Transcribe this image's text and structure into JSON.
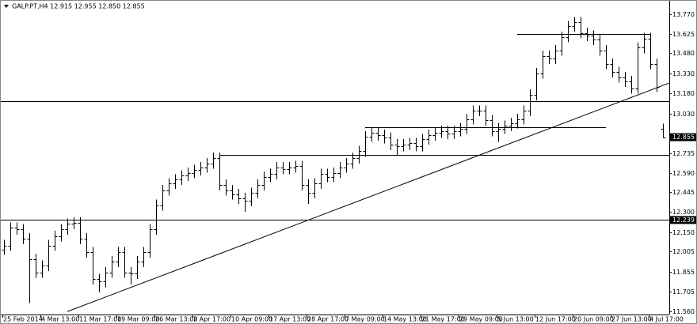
{
  "chart_data": {
    "type": "ohlc",
    "title": "GALP.PT,H4 12.915 12.955 12.850 12.855",
    "categories": [
      "25 Feb 2014",
      null,
      null,
      null,
      null,
      null,
      "4 Mar 13:00",
      null,
      null,
      null,
      null,
      null,
      "11 Mar 17:00",
      null,
      null,
      null,
      null,
      null,
      "19 Mar 09:00",
      null,
      null,
      null,
      null,
      null,
      "26 Mar 13:00",
      null,
      null,
      null,
      null,
      null,
      "2 Apr 17:00",
      null,
      null,
      null,
      null,
      null,
      "10 Apr 09:00",
      null,
      null,
      null,
      null,
      null,
      "17 Apr 13:00",
      null,
      null,
      null,
      null,
      null,
      "28 Apr 17:00",
      null,
      null,
      null,
      null,
      null,
      "7 May 09:00",
      null,
      null,
      null,
      null,
      null,
      "14 May 13:00",
      null,
      null,
      null,
      null,
      null,
      "21 May 17:00",
      null,
      null,
      null,
      null,
      null,
      "29 May 09:00",
      null,
      null,
      null,
      null,
      null,
      "5 Jun 13:00",
      null,
      null,
      null,
      null,
      null,
      "12 Jun 17:00",
      null,
      null,
      null,
      null,
      null,
      "20 Jun 09:00",
      null,
      null,
      null,
      null,
      null,
      "27 Jun 13:00",
      null,
      null,
      null,
      null,
      null,
      "4 Jul 17:00",
      null,
      null
    ],
    "open": [
      12.02,
      12.05,
      12.18,
      12.17,
      12.1,
      11.95,
      11.85,
      11.9,
      12.05,
      12.12,
      12.17,
      12.21,
      12.22,
      12.1,
      12.0,
      11.8,
      11.78,
      11.85,
      11.93,
      12.0,
      11.85,
      11.84,
      11.93,
      12.0,
      12.17,
      12.35,
      12.46,
      12.51,
      12.54,
      12.57,
      12.59,
      12.61,
      12.63,
      12.66,
      12.7,
      12.5,
      12.46,
      12.43,
      12.4,
      12.38,
      12.44,
      12.5,
      12.56,
      12.58,
      12.63,
      12.62,
      12.63,
      12.64,
      12.5,
      12.44,
      12.51,
      12.58,
      12.56,
      12.59,
      12.63,
      12.66,
      12.7,
      12.75,
      12.86,
      12.89,
      12.87,
      12.85,
      12.8,
      12.79,
      12.8,
      12.81,
      12.79,
      12.84,
      12.87,
      12.89,
      12.9,
      12.88,
      12.9,
      12.92,
      12.99,
      13.05,
      13.05,
      12.98,
      12.9,
      12.92,
      12.94,
      12.96,
      12.99,
      13.05,
      13.17,
      13.33,
      13.46,
      13.44,
      13.5,
      13.6,
      13.68,
      13.71,
      13.63,
      13.61,
      13.58,
      13.5,
      13.4,
      13.34,
      13.3,
      13.27,
      13.22,
      13.52,
      13.59,
      13.4,
      12.915
    ],
    "high": [
      12.09,
      12.22,
      12.22,
      12.21,
      12.14,
      11.99,
      11.94,
      12.09,
      12.16,
      12.21,
      12.25,
      12.26,
      12.26,
      12.14,
      12.04,
      11.84,
      11.89,
      11.97,
      12.04,
      12.04,
      11.89,
      11.97,
      12.04,
      12.21,
      12.39,
      12.5,
      12.55,
      12.58,
      12.61,
      12.63,
      12.65,
      12.67,
      12.7,
      12.74,
      12.74,
      12.54,
      12.5,
      12.47,
      12.44,
      12.48,
      12.54,
      12.6,
      12.62,
      12.67,
      12.67,
      12.67,
      12.68,
      12.68,
      12.54,
      12.55,
      12.62,
      12.62,
      12.63,
      12.67,
      12.7,
      12.74,
      12.79,
      12.9,
      12.93,
      12.93,
      12.91,
      12.89,
      12.84,
      12.84,
      12.85,
      12.85,
      12.88,
      12.91,
      12.93,
      12.94,
      12.94,
      12.94,
      12.96,
      13.03,
      13.09,
      13.09,
      13.09,
      13.02,
      12.96,
      12.98,
      13.0,
      13.03,
      13.09,
      13.21,
      13.37,
      13.5,
      13.5,
      13.54,
      13.64,
      13.72,
      13.75,
      13.75,
      13.67,
      13.65,
      13.62,
      13.54,
      13.44,
      13.38,
      13.34,
      13.31,
      13.56,
      13.63,
      13.63,
      13.44,
      12.955
    ],
    "low": [
      11.98,
      12.01,
      12.13,
      12.06,
      11.62,
      11.81,
      11.81,
      11.86,
      12.01,
      12.08,
      12.13,
      12.17,
      12.06,
      11.96,
      11.76,
      11.7,
      11.74,
      11.81,
      11.89,
      11.81,
      11.76,
      11.8,
      11.89,
      11.96,
      12.13,
      12.31,
      12.42,
      12.47,
      12.5,
      12.53,
      12.55,
      12.57,
      12.59,
      12.62,
      12.46,
      12.42,
      12.39,
      12.36,
      12.3,
      12.34,
      12.4,
      12.46,
      12.52,
      12.54,
      12.58,
      12.58,
      12.59,
      12.46,
      12.36,
      12.4,
      12.47,
      12.52,
      12.52,
      12.55,
      12.59,
      12.62,
      12.66,
      12.71,
      12.82,
      12.83,
      12.81,
      12.76,
      12.72,
      12.75,
      12.76,
      12.75,
      12.75,
      12.8,
      12.83,
      12.85,
      12.84,
      12.84,
      12.86,
      12.88,
      12.95,
      13.01,
      12.94,
      12.86,
      12.82,
      12.88,
      12.9,
      12.92,
      12.95,
      13.01,
      13.13,
      13.29,
      13.4,
      13.4,
      13.46,
      13.56,
      13.64,
      13.59,
      13.57,
      13.54,
      13.46,
      13.36,
      13.3,
      13.26,
      13.23,
      13.18,
      13.18,
      13.48,
      13.36,
      13.19,
      12.85
    ],
    "close": [
      12.05,
      12.18,
      12.17,
      12.1,
      11.95,
      11.85,
      11.9,
      12.05,
      12.12,
      12.17,
      12.21,
      12.22,
      12.1,
      12.0,
      11.8,
      11.78,
      11.85,
      11.93,
      12.0,
      11.85,
      11.84,
      11.93,
      12.0,
      12.17,
      12.35,
      12.46,
      12.51,
      12.54,
      12.57,
      12.59,
      12.61,
      12.63,
      12.66,
      12.7,
      12.5,
      12.46,
      12.43,
      12.4,
      12.38,
      12.44,
      12.5,
      12.56,
      12.58,
      12.63,
      12.62,
      12.63,
      12.64,
      12.5,
      12.44,
      12.51,
      12.58,
      12.56,
      12.59,
      12.63,
      12.66,
      12.7,
      12.75,
      12.86,
      12.89,
      12.87,
      12.85,
      12.8,
      12.79,
      12.8,
      12.81,
      12.79,
      12.84,
      12.87,
      12.89,
      12.9,
      12.88,
      12.9,
      12.92,
      12.99,
      13.05,
      13.05,
      12.98,
      12.9,
      12.92,
      12.94,
      12.96,
      12.99,
      13.05,
      13.17,
      13.33,
      13.46,
      13.44,
      13.5,
      13.6,
      13.68,
      13.71,
      13.63,
      13.61,
      13.58,
      13.5,
      13.4,
      13.34,
      13.3,
      13.27,
      13.22,
      13.52,
      13.59,
      13.4,
      13.23,
      12.855
    ],
    "ylim": [
      11.536,
      13.846
    ],
    "yticks": [
      {
        "value": 13.77,
        "label": "13.770"
      },
      {
        "value": 13.625,
        "label": "13.625"
      },
      {
        "value": 13.48,
        "label": "13.480"
      },
      {
        "value": 13.33,
        "label": "13.330"
      },
      {
        "value": 13.18,
        "label": "13.180"
      },
      {
        "value": 13.03,
        "label": "13.030"
      },
      {
        "value": 12.735,
        "label": "12.735"
      },
      {
        "value": 12.59,
        "label": "12.590"
      },
      {
        "value": 12.445,
        "label": "12.445"
      },
      {
        "value": 12.3,
        "label": "12.300"
      },
      {
        "value": 12.15,
        "label": "12.150"
      },
      {
        "value": 12.005,
        "label": "12.005"
      },
      {
        "value": 11.855,
        "label": "11.855"
      },
      {
        "value": 11.705,
        "label": "11.705"
      },
      {
        "value": 11.56,
        "label": "11.560"
      }
    ],
    "price_labels": [
      12.855,
      12.239
    ],
    "hlines": [
      {
        "value": 13.625,
        "start": 81,
        "end": 102
      },
      {
        "value": 13.123
      },
      {
        "value": 12.93,
        "start": 57,
        "end": 95
      },
      {
        "value": 12.723,
        "start": 34
      },
      {
        "value": 12.239
      }
    ],
    "trendline": {
      "from": [
        10,
        11.558
      ],
      "to": [
        105,
        13.258
      ]
    },
    "grid": false
  }
}
